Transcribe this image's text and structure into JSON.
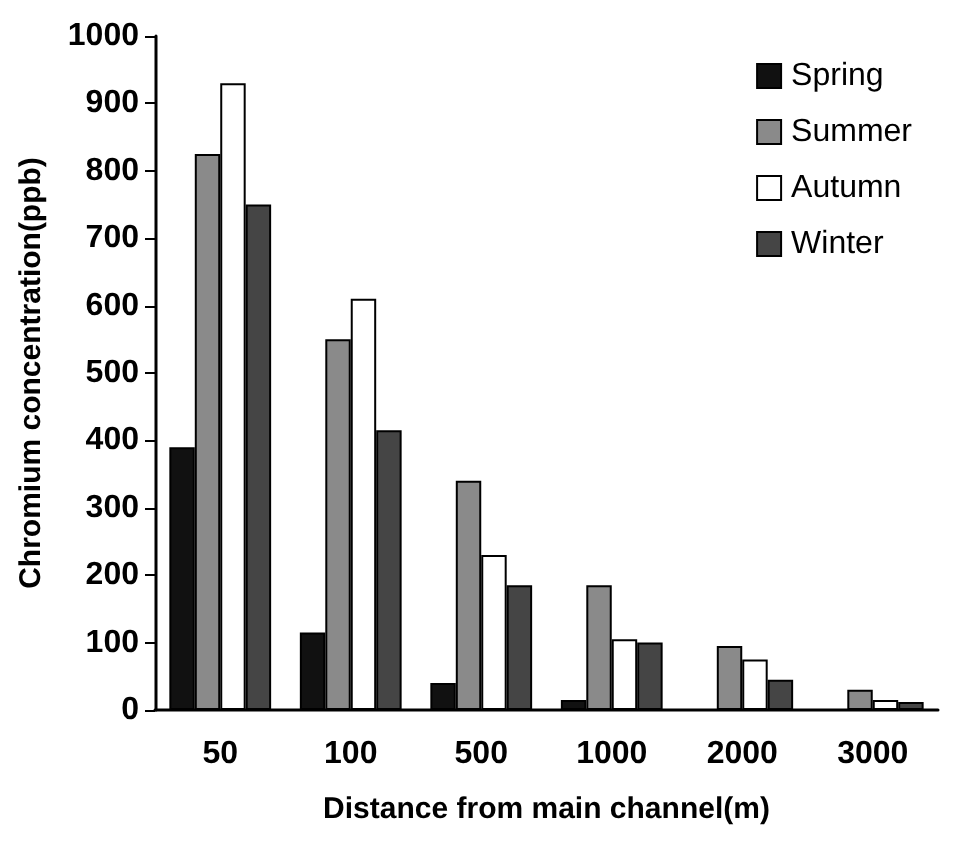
{
  "chart_data": {
    "type": "bar",
    "xlabel": "Distance from main channel(m)",
    "ylabel": "Chromium concentration(ppb)",
    "categories": [
      "50",
      "100",
      "500",
      "1000",
      "2000",
      "3000"
    ],
    "series": [
      {
        "name": "Spring",
        "color": "#111111",
        "values": [
          390,
          115,
          40,
          15,
          null,
          null
        ]
      },
      {
        "name": "Summer",
        "color": "#8a8a8a",
        "values": [
          825,
          550,
          340,
          185,
          95,
          30
        ]
      },
      {
        "name": "Autumn",
        "color": "#ffffff",
        "values": [
          930,
          610,
          230,
          105,
          75,
          15
        ]
      },
      {
        "name": "Winter",
        "color": "#454545",
        "values": [
          750,
          415,
          185,
          100,
          45,
          12
        ]
      }
    ],
    "ylim": [
      0,
      1000
    ],
    "yticks": [
      0,
      100,
      200,
      300,
      400,
      500,
      600,
      700,
      800,
      900,
      1000
    ],
    "grid": false,
    "legend": "top right"
  }
}
